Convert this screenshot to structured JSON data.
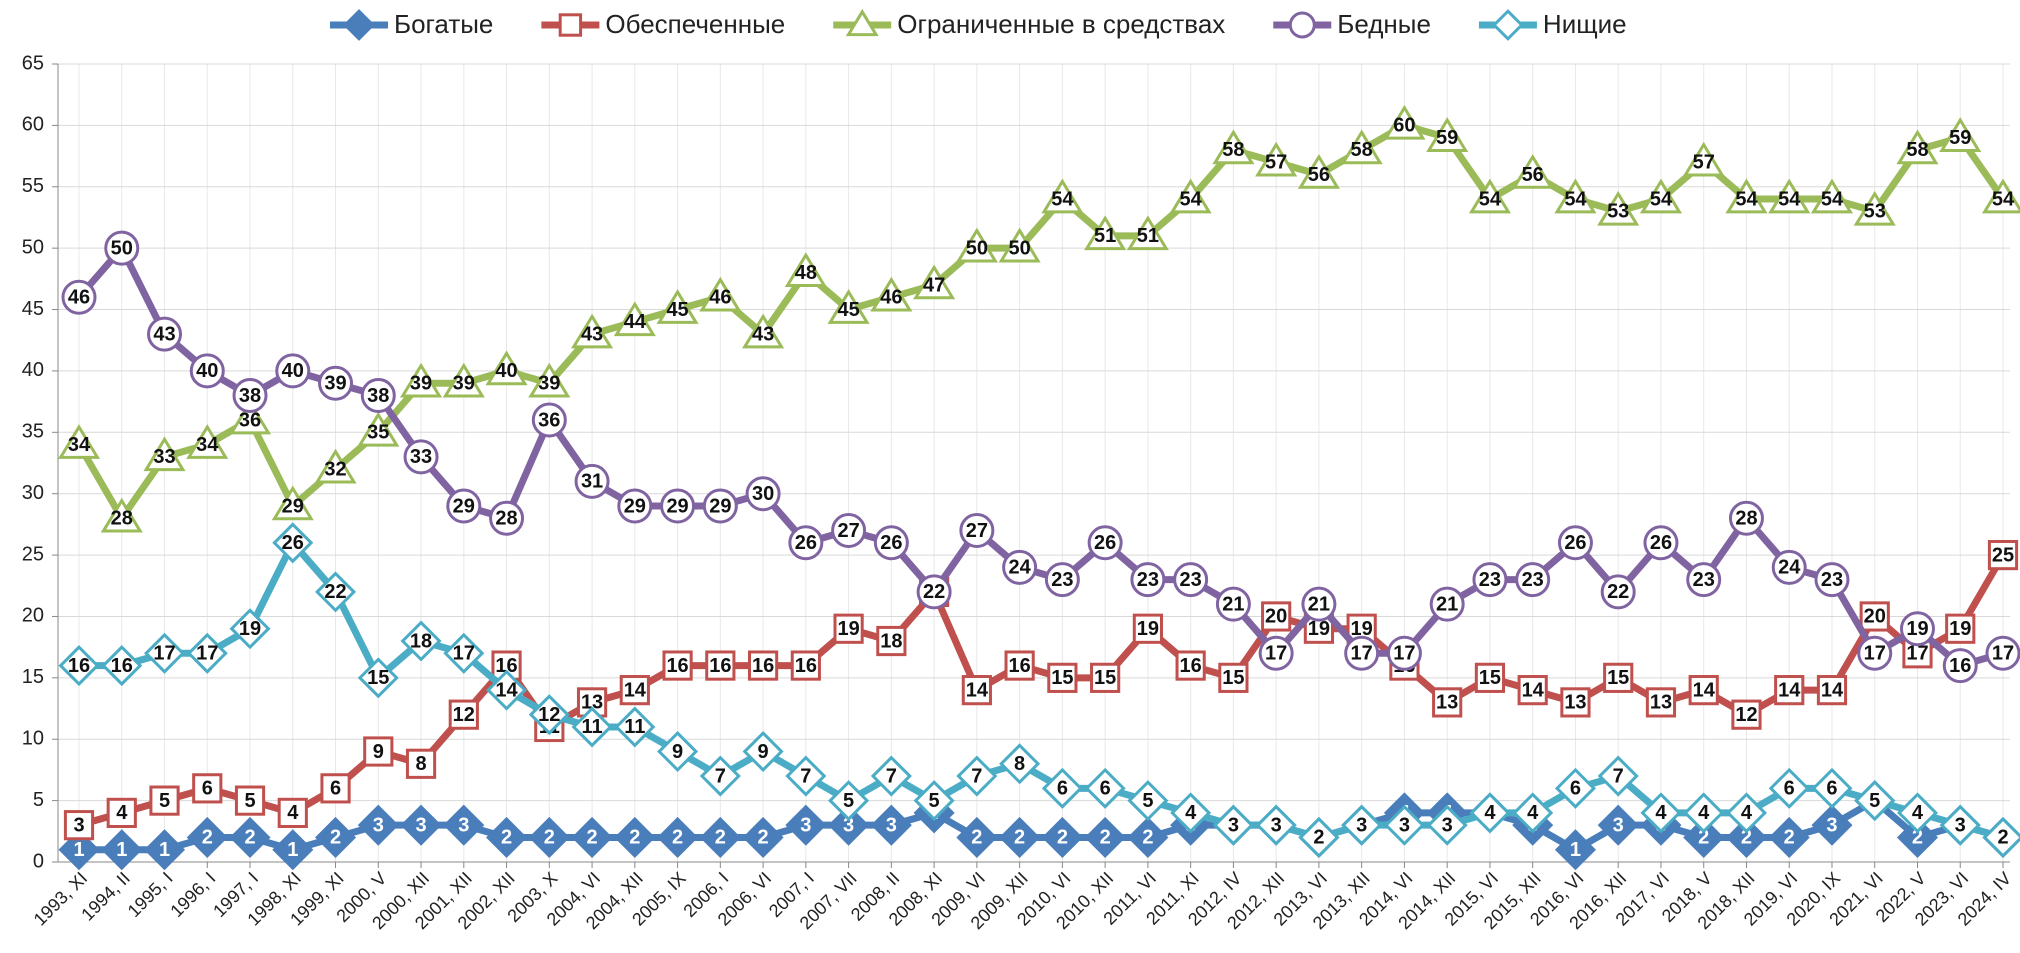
{
  "chart_data": {
    "type": "line",
    "categories": [
      "1993, XI",
      "1994, II",
      "1995, I",
      "1996, I",
      "1997, I",
      "1998, XI",
      "1999, XI",
      "2000, V",
      "2000, XII",
      "2001, XII",
      "2002, XII",
      "2003, X",
      "2004, VI",
      "2004, XII",
      "2005, IX",
      "2006, I",
      "2006, VI",
      "2007, I",
      "2007, VII",
      "2008, II",
      "2008, XI",
      "2009, VI",
      "2009, XII",
      "2010, VI",
      "2010, XII",
      "2011, VI",
      "2011, XI",
      "2012, IV",
      "2012, XII",
      "2013, VI",
      "2013, XII",
      "2014, VI",
      "2014, XII",
      "2015, VI",
      "2015, XII",
      "2016, VI",
      "2016, XII",
      "2017, VI",
      "2018, V",
      "2018, XII",
      "2019, VI",
      "2020, IX",
      "2021, VI",
      "2022, V",
      "2023, VI",
      "2024, IV"
    ],
    "series": [
      {
        "name": "Богатые",
        "color": "#4a7ebb",
        "marker": "diamond-filled",
        "values": [
          1,
          1,
          1,
          2,
          2,
          1,
          2,
          3,
          3,
          3,
          2,
          2,
          2,
          2,
          2,
          2,
          2,
          3,
          3,
          3,
          4,
          2,
          2,
          2,
          2,
          2,
          3,
          3,
          3,
          2,
          3,
          4,
          4,
          4,
          3,
          1,
          3,
          3,
          2,
          2,
          2,
          3,
          5,
          2,
          3,
          2
        ]
      },
      {
        "name": "Обеспеченные",
        "color": "#c0504d",
        "marker": "square",
        "values": [
          3,
          4,
          5,
          6,
          5,
          4,
          6,
          9,
          8,
          12,
          16,
          11,
          13,
          14,
          16,
          16,
          16,
          16,
          19,
          18,
          22,
          14,
          16,
          15,
          15,
          19,
          16,
          15,
          20,
          19,
          19,
          16,
          13,
          15,
          14,
          13,
          15,
          13,
          14,
          12,
          14,
          14,
          20,
          17,
          19,
          25
        ]
      },
      {
        "name": "Ограниченные в средствах",
        "color": "#9bbb59",
        "marker": "triangle",
        "values": [
          34,
          28,
          33,
          34,
          36,
          29,
          32,
          35,
          39,
          39,
          40,
          39,
          43,
          44,
          45,
          46,
          43,
          48,
          45,
          46,
          47,
          50,
          50,
          54,
          51,
          51,
          54,
          58,
          57,
          56,
          58,
          60,
          59,
          54,
          56,
          54,
          53,
          54,
          57,
          54,
          54,
          54,
          53,
          58,
          59,
          54
        ]
      },
      {
        "name": "Бедные",
        "color": "#8064a2",
        "marker": "circle",
        "values": [
          46,
          50,
          43,
          40,
          38,
          40,
          39,
          38,
          33,
          29,
          28,
          36,
          31,
          29,
          29,
          29,
          30,
          26,
          27,
          26,
          22,
          27,
          24,
          23,
          26,
          23,
          23,
          21,
          17,
          21,
          17,
          17,
          21,
          23,
          23,
          26,
          22,
          26,
          23,
          28,
          24,
          23,
          17,
          19,
          16,
          17
        ]
      },
      {
        "name": "Нищие",
        "color": "#4bacc6",
        "marker": "diamond",
        "values": [
          16,
          16,
          17,
          17,
          19,
          26,
          22,
          15,
          18,
          17,
          14,
          12,
          11,
          11,
          9,
          7,
          9,
          7,
          5,
          7,
          5,
          7,
          8,
          6,
          6,
          5,
          4,
          3,
          3,
          2,
          3,
          3,
          3,
          4,
          4,
          6,
          7,
          4,
          4,
          4,
          6,
          6,
          5,
          4,
          3,
          2
        ]
      }
    ],
    "ylim": [
      0,
      65
    ],
    "yticks": [
      0,
      5,
      10,
      15,
      20,
      25,
      30,
      35,
      40,
      45,
      50,
      55,
      60,
      65
    ],
    "grid": true,
    "legend": "top"
  }
}
